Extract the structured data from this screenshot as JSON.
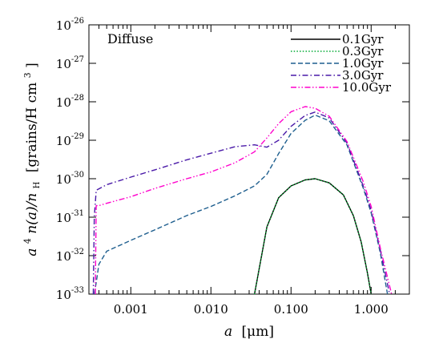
{
  "chart_data": {
    "type": "line",
    "annotation": "Diffuse",
    "x_scale": "log",
    "y_scale": "log",
    "xlim": [
      0.0003,
      3.0
    ],
    "ylim": [
      1e-33,
      1e-26
    ],
    "x_tick_labels": [
      "0.001",
      "0.010",
      "0.100",
      "1.000"
    ],
    "x_tick_values": [
      0.001,
      0.01,
      0.1,
      1.0
    ],
    "y_tick_values": [
      1e-33,
      1e-32,
      1e-31,
      1e-30,
      1e-29,
      1e-28,
      1e-27,
      1e-26
    ],
    "y_tick_exponents": [
      "-33",
      "-32",
      "-31",
      "-30",
      "-29",
      "-28",
      "-27",
      "-26"
    ],
    "y_tick_base": "10",
    "xlabel": {
      "var": "a",
      "unit": "[μm]"
    },
    "ylabel": {
      "lhs": "a",
      "power": "4",
      "mid": "n(a)/n",
      "sub": "H",
      "unit": "[grains/H cm",
      "unit_power": "3",
      "unit_close": "]"
    },
    "legend_position": "top-right",
    "series": [
      {
        "name": "0.1Gyr",
        "color": "#000000",
        "dash": "solid",
        "points": [
          [
            0.035,
            1e-33
          ],
          [
            0.05,
            5.6e-32
          ],
          [
            0.07,
            3.2e-31
          ],
          [
            0.1,
            6.5e-31
          ],
          [
            0.15,
            9.3e-31
          ],
          [
            0.2,
            1e-30
          ],
          [
            0.3,
            7.8e-31
          ],
          [
            0.45,
            3.8e-31
          ],
          [
            0.6,
            1.1e-31
          ],
          [
            0.75,
            2.3e-32
          ],
          [
            0.9,
            3.5e-33
          ],
          [
            1.0,
            1e-33
          ]
        ]
      },
      {
        "name": "0.3Gyr",
        "color": "#00aa33",
        "dash": "dotted",
        "points": [
          [
            0.035,
            1e-33
          ],
          [
            0.05,
            5.6e-32
          ],
          [
            0.07,
            3.2e-31
          ],
          [
            0.1,
            6.5e-31
          ],
          [
            0.15,
            9.3e-31
          ],
          [
            0.2,
            1e-30
          ],
          [
            0.3,
            7.8e-31
          ],
          [
            0.45,
            3.8e-31
          ],
          [
            0.6,
            1.1e-31
          ],
          [
            0.75,
            2.3e-32
          ],
          [
            0.9,
            3.5e-33
          ],
          [
            1.0,
            1e-33
          ]
        ]
      },
      {
        "name": "1.0Gyr",
        "color": "#1f5f8f",
        "dash": "dashed",
        "points": [
          [
            0.00035,
            1e-33
          ],
          [
            0.00037,
            2e-33
          ],
          [
            0.0004,
            6e-33
          ],
          [
            0.0005,
            1.3e-32
          ],
          [
            0.001,
            2.5e-32
          ],
          [
            0.002,
            4.7e-32
          ],
          [
            0.005,
            1.1e-31
          ],
          [
            0.01,
            1.9e-31
          ],
          [
            0.02,
            3.6e-31
          ],
          [
            0.035,
            6.5e-31
          ],
          [
            0.05,
            1.3e-30
          ],
          [
            0.07,
            4.5e-30
          ],
          [
            0.1,
            1.5e-29
          ],
          [
            0.15,
            3.3e-29
          ],
          [
            0.2,
            4.5e-29
          ],
          [
            0.3,
            3.2e-29
          ],
          [
            0.5,
            7.5e-30
          ],
          [
            0.8,
            5.6e-31
          ],
          [
            1.0,
            1.3e-31
          ],
          [
            1.3,
            1.2e-32
          ],
          [
            1.6,
            1e-33
          ]
        ]
      },
      {
        "name": "3.0Gyr",
        "color": "#4a1aa8",
        "dash": "dashdot",
        "points": [
          [
            0.00034,
            1e-33
          ],
          [
            0.00035,
            1e-31
          ],
          [
            0.00037,
            5e-31
          ],
          [
            0.0005,
            7e-31
          ],
          [
            0.001,
            1.1e-30
          ],
          [
            0.002,
            1.7e-30
          ],
          [
            0.005,
            3.1e-30
          ],
          [
            0.01,
            4.6e-30
          ],
          [
            0.02,
            6.8e-30
          ],
          [
            0.035,
            7.6e-30
          ],
          [
            0.05,
            6.6e-30
          ],
          [
            0.07,
            1e-29
          ],
          [
            0.1,
            2.3e-29
          ],
          [
            0.15,
            4.4e-29
          ],
          [
            0.2,
            5.4e-29
          ],
          [
            0.3,
            3.8e-29
          ],
          [
            0.5,
            8.4e-30
          ],
          [
            0.8,
            6.3e-31
          ],
          [
            1.0,
            1.5e-31
          ],
          [
            1.3,
            1.4e-32
          ],
          [
            1.7,
            1e-33
          ]
        ]
      },
      {
        "name": "10.0Gyr",
        "color": "#ff00cc",
        "dash": "dashdotdot",
        "points": [
          [
            0.00036,
            1e-33
          ],
          [
            0.00037,
            2e-31
          ],
          [
            0.0004,
            2e-31
          ],
          [
            0.0005,
            2.3e-31
          ],
          [
            0.001,
            3.4e-31
          ],
          [
            0.002,
            5.6e-31
          ],
          [
            0.005,
            1e-30
          ],
          [
            0.01,
            1.5e-30
          ],
          [
            0.02,
            2.6e-30
          ],
          [
            0.035,
            5e-30
          ],
          [
            0.05,
            1.15e-29
          ],
          [
            0.07,
            2.7e-29
          ],
          [
            0.1,
            5.5e-29
          ],
          [
            0.15,
            7.5e-29
          ],
          [
            0.2,
            6.8e-29
          ],
          [
            0.3,
            4.2e-29
          ],
          [
            0.5,
            9.2e-30
          ],
          [
            0.8,
            8.2e-31
          ],
          [
            1.0,
            1.9e-31
          ],
          [
            1.3,
            1.6e-32
          ],
          [
            1.8,
            1e-33
          ]
        ]
      }
    ]
  }
}
